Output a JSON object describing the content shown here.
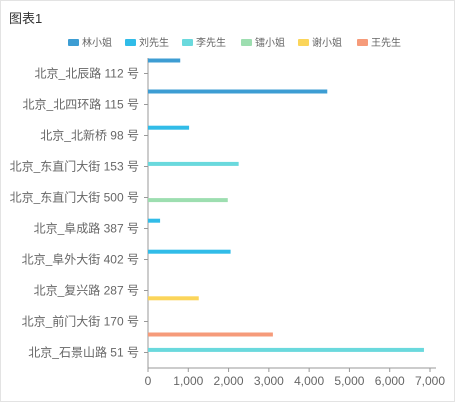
{
  "title": "图表1",
  "chart_data": {
    "type": "bar",
    "orientation": "horizontal",
    "categories": [
      "北京_北辰路 112 号",
      "北京_北四环路 115 号",
      "北京_北新桥 98 号",
      "北京_东直门大街 153 号",
      "北京_东直门大街 500 号",
      "北京_阜成路 387 号",
      "北京_阜外大街 402 号",
      "北京_复兴路 287 号",
      "北京_前门大街 170 号",
      "北京_石景山路 51 号"
    ],
    "series": [
      {
        "name": "林小姐",
        "color": "#3d9dd3",
        "values": [
          800,
          4450,
          null,
          null,
          null,
          null,
          null,
          null,
          null,
          null
        ]
      },
      {
        "name": "刘先生",
        "color": "#31bce8",
        "values": [
          null,
          null,
          1020,
          null,
          null,
          300,
          2050,
          null,
          null,
          null
        ]
      },
      {
        "name": "李先生",
        "color": "#6ad9dd",
        "values": [
          null,
          null,
          null,
          2250,
          null,
          null,
          null,
          null,
          null,
          6850
        ]
      },
      {
        "name": "镭小姐",
        "color": "#9ddeb0",
        "values": [
          null,
          null,
          null,
          null,
          1980,
          null,
          null,
          null,
          null,
          null
        ]
      },
      {
        "name": "谢小姐",
        "color": "#fbd55a",
        "values": [
          null,
          null,
          null,
          null,
          null,
          null,
          null,
          1260,
          null,
          null
        ]
      },
      {
        "name": "王先生",
        "color": "#f69b7a",
        "values": [
          null,
          null,
          null,
          null,
          null,
          null,
          null,
          null,
          3100,
          null
        ]
      }
    ],
    "xlim": [
      0,
      7000
    ],
    "x_ticks": [
      "0",
      "1,000",
      "2,000",
      "3,000",
      "4,000",
      "5,000",
      "6,000",
      "7,000"
    ],
    "grid": false,
    "legend_position": "top"
  }
}
